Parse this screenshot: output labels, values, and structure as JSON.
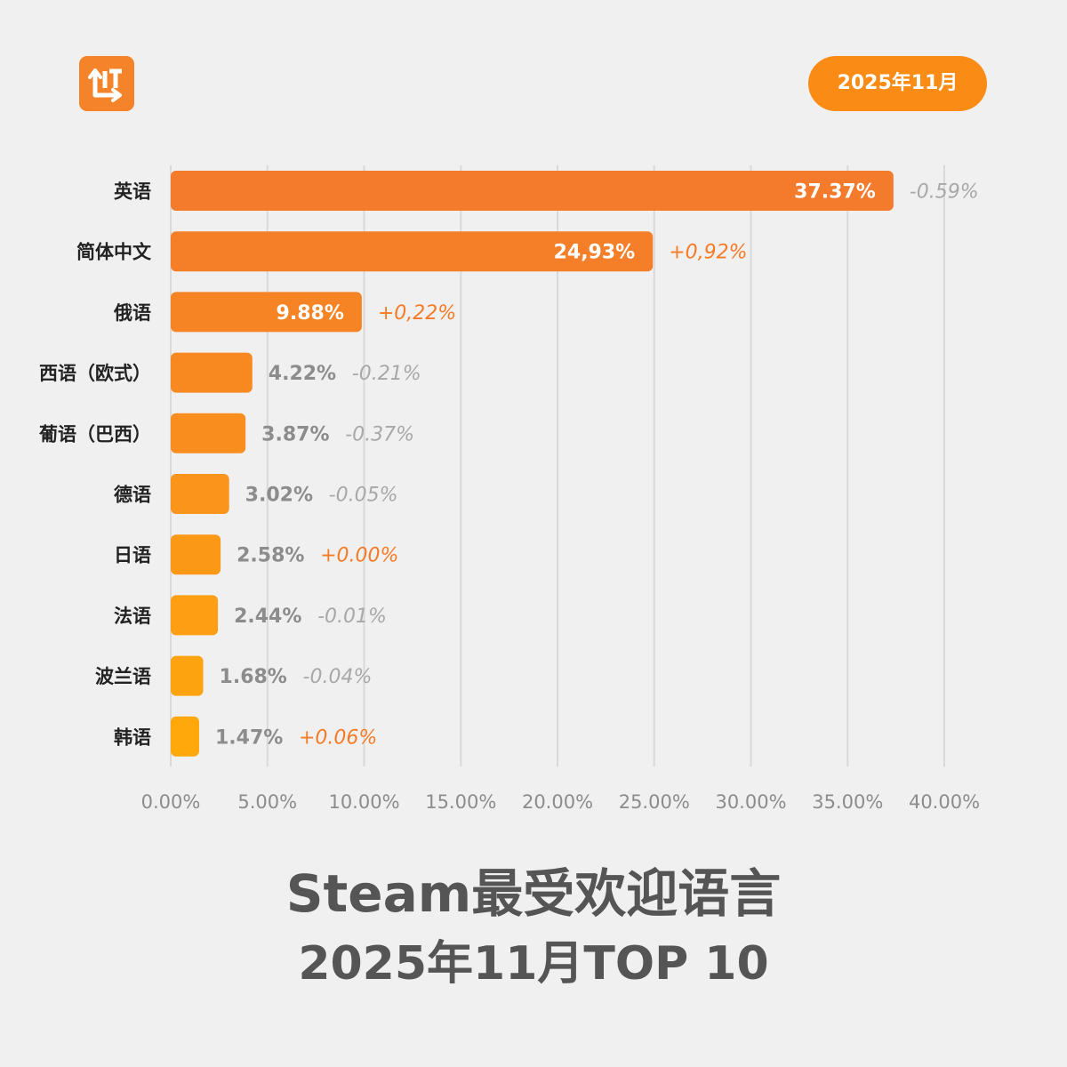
{
  "header": {
    "logo_icon": "lit-logo-icon",
    "date_badge": "2025年11月"
  },
  "colors": {
    "background": "#f0f0f0",
    "accent": "#fa8c16",
    "positive_change": "#f57b26",
    "negative_change": "#a8a8a8",
    "outside_label": "#8c8c8c",
    "gridline": "#d9d9d9",
    "bar_top": "#f47a2c",
    "bar_bottom": "#ffa80c"
  },
  "chart_data": {
    "type": "bar",
    "orientation": "horizontal",
    "title": "Steam最受欢迎语言",
    "subtitle": "2025年11月TOP 10",
    "categories": [
      "英语",
      "简体中文",
      "俄语",
      "西语（欧式）",
      "葡语（巴西）",
      "德语",
      "日语",
      "法语",
      "波兰语",
      "韩语"
    ],
    "values": [
      37.37,
      24.93,
      9.88,
      4.22,
      3.87,
      3.02,
      2.58,
      2.44,
      1.68,
      1.47
    ],
    "value_labels": [
      "37.37%",
      "24,93%",
      "9.88%",
      "4.22%",
      "3.87%",
      "3.02%",
      "2.58%",
      "2.44%",
      "1.68%",
      "1.47%"
    ],
    "changes": [
      -0.59,
      0.92,
      0.22,
      -0.21,
      -0.37,
      -0.05,
      0.0,
      -0.01,
      -0.04,
      0.06
    ],
    "change_labels": [
      "-0.59%",
      "+0,92%",
      "+0,22%",
      "-0.21%",
      "-0.37%",
      "-0.05%",
      "+0.00%",
      "-0.01%",
      "-0.04%",
      "+0.06%"
    ],
    "xlim": [
      0,
      40
    ],
    "xticks": [
      0,
      5,
      10,
      15,
      20,
      25,
      30,
      35,
      40
    ],
    "xtick_labels": [
      "0.00%",
      "5.00%",
      "10.00%",
      "15.00%",
      "20.00%",
      "25.00%",
      "30.00%",
      "35.00%",
      "40.00%"
    ],
    "xlabel": "",
    "ylabel": "",
    "grid": "vertical"
  }
}
